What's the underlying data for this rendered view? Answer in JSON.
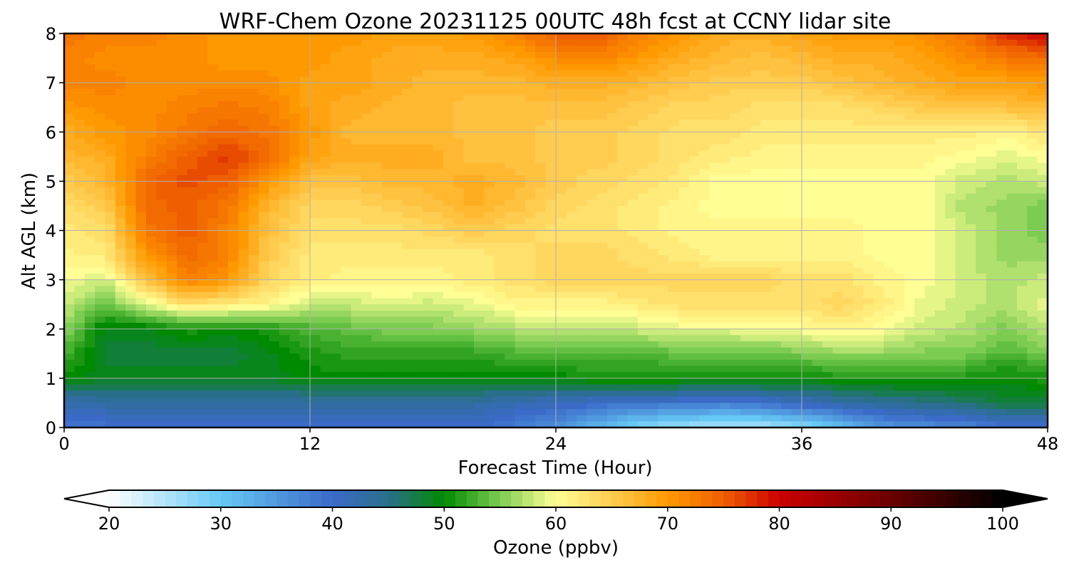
{
  "chart_data": {
    "type": "heatmap",
    "title": "WRF-Chem Ozone  20231125 00UTC 48h fcst at CCNY lidar site",
    "xlabel": "Forecast Time (Hour)",
    "ylabel": "Alt AGL (km)",
    "xlim": [
      0,
      48
    ],
    "ylim": [
      0,
      8
    ],
    "x_ticks": [
      "0",
      "12",
      "24",
      "36",
      "48"
    ],
    "y_ticks": [
      "0",
      "1",
      "2",
      "3",
      "4",
      "5",
      "6",
      "7",
      "8"
    ],
    "grid": true,
    "colorbar": {
      "label": "Ozone  (ppbv)",
      "range": [
        20,
        100
      ],
      "ticks": [
        "20",
        "30",
        "40",
        "50",
        "60",
        "70",
        "80",
        "90",
        "100"
      ],
      "extend": "both",
      "stops": [
        {
          "v": 20,
          "c": "#ffffff"
        },
        {
          "v": 30,
          "c": "#66c8f5"
        },
        {
          "v": 40,
          "c": "#3b6ac8"
        },
        {
          "v": 45,
          "c": "#2a6f8a"
        },
        {
          "v": 50,
          "c": "#008a00"
        },
        {
          "v": 55,
          "c": "#7ccc52"
        },
        {
          "v": 60,
          "c": "#ffff96"
        },
        {
          "v": 65,
          "c": "#ffcc50"
        },
        {
          "v": 70,
          "c": "#ff9900"
        },
        {
          "v": 75,
          "c": "#ef5f00"
        },
        {
          "v": 80,
          "c": "#cc0000"
        },
        {
          "v": 90,
          "c": "#6b0000"
        },
        {
          "v": 100,
          "c": "#000000"
        }
      ]
    },
    "x_hours": [
      0,
      2,
      4,
      6,
      8,
      10,
      12,
      14,
      16,
      18,
      20,
      22,
      24,
      26,
      28,
      30,
      32,
      34,
      36,
      38,
      40,
      42,
      44,
      46,
      48
    ],
    "y_km": [
      0,
      0.5,
      1,
      1.5,
      2,
      2.5,
      3,
      3.5,
      4,
      4.5,
      5,
      5.5,
      6,
      6.5,
      7,
      7.5,
      8
    ],
    "ozone_ppbv": [
      [
        39,
        39,
        39,
        39,
        39,
        39,
        39,
        40,
        40,
        40,
        40,
        38,
        36,
        32,
        28,
        26,
        25,
        25,
        27,
        31,
        35,
        36,
        37,
        39,
        39
      ],
      [
        42,
        43,
        43,
        43,
        43,
        43,
        43,
        43,
        43,
        43,
        43,
        42,
        41,
        40,
        39,
        39,
        38,
        39,
        41,
        43,
        44,
        45,
        46,
        48,
        48
      ],
      [
        50,
        49,
        49,
        49,
        49,
        49,
        50,
        50,
        50,
        50,
        50,
        50,
        50,
        51,
        51,
        51,
        51,
        51,
        50,
        51,
        51,
        51,
        51,
        50,
        51
      ],
      [
        53,
        48,
        48,
        48,
        48,
        49,
        51,
        52,
        52,
        52,
        52,
        53,
        53,
        53,
        53,
        54,
        54,
        54,
        55,
        56,
        56,
        55,
        55,
        53,
        55
      ],
      [
        56,
        49,
        49,
        51,
        50,
        51,
        53,
        54,
        55,
        55,
        56,
        57,
        57,
        57,
        58,
        59,
        59,
        60,
        60,
        61,
        60,
        58,
        57,
        55,
        57
      ],
      [
        58,
        54,
        59,
        63,
        62,
        61,
        58,
        58,
        59,
        58,
        59,
        61,
        61,
        61,
        62,
        63,
        63,
        63,
        63,
        64,
        62,
        59,
        58,
        57,
        59
      ],
      [
        60,
        58,
        66,
        72,
        70,
        64,
        62,
        61,
        61,
        61,
        62,
        63,
        64,
        64,
        64,
        64,
        64,
        64,
        63,
        63,
        61,
        60,
        58,
        57,
        58
      ],
      [
        61,
        62,
        70,
        74,
        72,
        65,
        62,
        62,
        62,
        62,
        62,
        63,
        64,
        64,
        63,
        62,
        61,
        61,
        61,
        61,
        60,
        60,
        58,
        56,
        56
      ],
      [
        62,
        63,
        73,
        75,
        72,
        66,
        63,
        63,
        63,
        64,
        65,
        64,
        63,
        63,
        62,
        61,
        61,
        61,
        61,
        61,
        60,
        60,
        58,
        56,
        55
      ],
      [
        63,
        65,
        74,
        75,
        73,
        67,
        64,
        64,
        65,
        66,
        68,
        66,
        64,
        63,
        62,
        61,
        60,
        60,
        60,
        60,
        60,
        60,
        57,
        56,
        55
      ],
      [
        65,
        67,
        74,
        76,
        75,
        70,
        66,
        66,
        67,
        67,
        68,
        67,
        65,
        64,
        63,
        62,
        60,
        60,
        60,
        60,
        60,
        60,
        58,
        57,
        58
      ],
      [
        67,
        68,
        72,
        75,
        77,
        74,
        69,
        68,
        68,
        68,
        66,
        66,
        65,
        65,
        64,
        63,
        62,
        61,
        61,
        61,
        61,
        61,
        60,
        59,
        60
      ],
      [
        68,
        70,
        71,
        73,
        74,
        73,
        70,
        67,
        67,
        67,
        66,
        66,
        65,
        65,
        64,
        63,
        63,
        62,
        62,
        62,
        62,
        62,
        62,
        61,
        63
      ],
      [
        70,
        71,
        71,
        72,
        73,
        72,
        69,
        68,
        67,
        67,
        66,
        66,
        66,
        66,
        65,
        64,
        64,
        63,
        63,
        63,
        64,
        65,
        66,
        66,
        67
      ],
      [
        72,
        72,
        71,
        71,
        71,
        71,
        69,
        69,
        68,
        67,
        67,
        67,
        68,
        68,
        67,
        66,
        65,
        65,
        65,
        66,
        67,
        68,
        69,
        69,
        70
      ],
      [
        72,
        71,
        71,
        71,
        70,
        70,
        70,
        69,
        68,
        68,
        68,
        69,
        71,
        72,
        70,
        68,
        67,
        66,
        67,
        68,
        68,
        69,
        71,
        73,
        74
      ],
      [
        73,
        72,
        72,
        71,
        70,
        70,
        70,
        70,
        69,
        69,
        70,
        72,
        75,
        76,
        72,
        70,
        68,
        68,
        69,
        70,
        70,
        71,
        73,
        78,
        80
      ]
    ]
  }
}
